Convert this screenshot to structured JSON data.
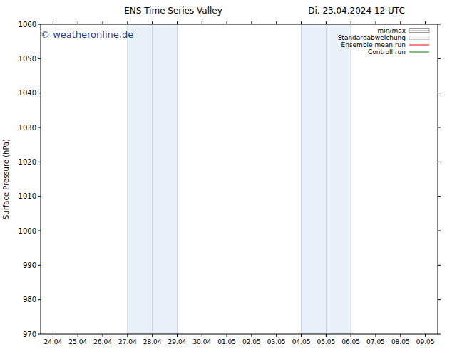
{
  "chart_data": {
    "type": "line",
    "title": "ENS Time Series Valley",
    "subtitle": "Di. 23.04.2024 12 UTC",
    "annotation": "© weatheronline.de",
    "y_label": "Surface Pressure (hPa)",
    "x": [
      "24.04",
      "25.04",
      "26.04",
      "27.04",
      "28.04",
      "29.04",
      "30.04",
      "01.05",
      "02.05",
      "03.05",
      "04.05",
      "05.05",
      "06.05",
      "07.05",
      "08.05",
      "09.05"
    ],
    "xlim": [
      -0.5,
      15.5
    ],
    "shaded_ranges": [
      [
        "27.04",
        "28.04",
        "29.04"
      ],
      [
        "04.05",
        "05.05",
        "06.05"
      ]
    ],
    "series": [
      {
        "name": "min/max",
        "type": "band",
        "color": "#999999",
        "values": [
          null,
          null,
          null,
          null,
          null,
          null,
          null,
          null,
          null,
          null,
          null,
          null,
          null,
          null,
          null,
          null
        ]
      },
      {
        "name": "Standardabweichung",
        "type": "band",
        "color": "#cccccc",
        "values": [
          null,
          null,
          null,
          null,
          null,
          null,
          null,
          null,
          null,
          null,
          null,
          null,
          null,
          null,
          null,
          null
        ]
      },
      {
        "name": "Ensemble mean run",
        "type": "line",
        "color": "#ff0000",
        "values": [
          null,
          null,
          null,
          null,
          null,
          null,
          null,
          null,
          null,
          null,
          null,
          null,
          null,
          null,
          null,
          null
        ]
      },
      {
        "name": "Controll run",
        "type": "line",
        "color": "#008000",
        "values": [
          null,
          null,
          null,
          null,
          null,
          null,
          null,
          null,
          null,
          null,
          null,
          null,
          null,
          null,
          null,
          null
        ]
      }
    ],
    "ylim": [
      970,
      1060
    ],
    "yticks": [
      970,
      980,
      990,
      1000,
      1010,
      1020,
      1030,
      1040,
      1050,
      1060
    ],
    "grid": false,
    "legend": "upper-right"
  }
}
